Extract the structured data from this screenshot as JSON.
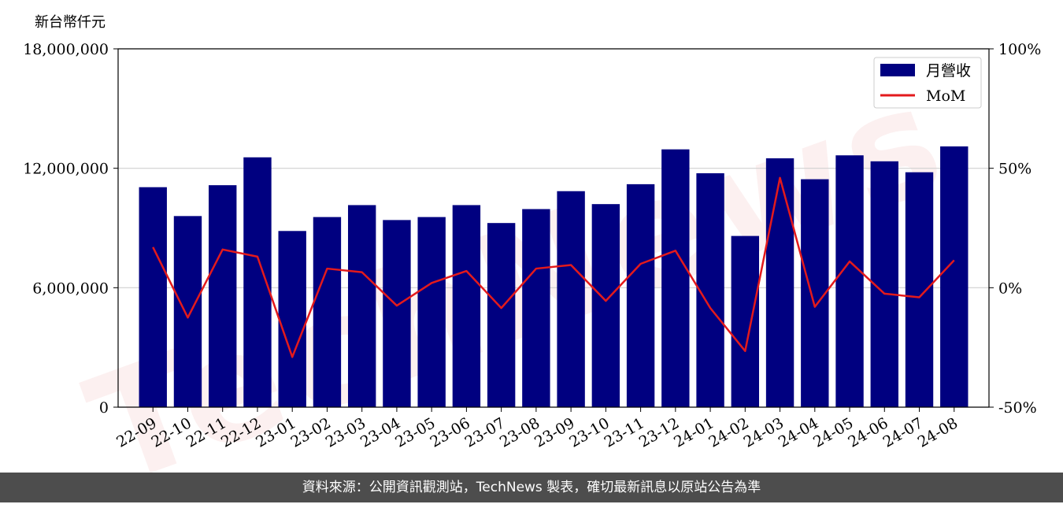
{
  "chart_data": {
    "type": "bar+line",
    "y_left_unit": "新台幣仟元",
    "ylim_left": [
      0,
      18000000
    ],
    "yticks_left": [
      "0",
      "6,000,000",
      "12,000,000",
      "18,000,000"
    ],
    "ylim_right": [
      -50,
      100
    ],
    "yticks_right": [
      "-50%",
      "0%",
      "50%",
      "100%"
    ],
    "categories": [
      "22-09",
      "22-10",
      "22-11",
      "22-12",
      "23-01",
      "23-02",
      "23-03",
      "23-04",
      "23-05",
      "23-06",
      "23-07",
      "23-08",
      "23-09",
      "23-10",
      "23-11",
      "23-12",
      "24-01",
      "24-02",
      "24-03",
      "24-04",
      "24-05",
      "24-06",
      "24-07",
      "24-08"
    ],
    "series": [
      {
        "name": "月營收",
        "kind": "bar",
        "axis": "left",
        "color": "#000080",
        "values": [
          11050000,
          9600000,
          11150000,
          12550000,
          8850000,
          9550000,
          10150000,
          9400000,
          9550000,
          10150000,
          9250000,
          9950000,
          10850000,
          10200000,
          11200000,
          12950000,
          11750000,
          8600000,
          12500000,
          11450000,
          12650000,
          12350000,
          11800000,
          13100000
        ]
      },
      {
        "name": "MoM",
        "kind": "line",
        "axis": "right",
        "color": "#e31a1c",
        "values": [
          17,
          -12.5,
          16,
          13,
          -29,
          8,
          6.5,
          -7.5,
          2,
          7,
          -8.5,
          8,
          9.5,
          -5.5,
          10,
          15.5,
          -8.5,
          -26.5,
          46,
          -8,
          11,
          -2.5,
          -4,
          11.5
        ]
      }
    ],
    "legend_position": "top-right",
    "grid": "horizontal"
  },
  "footer": {
    "text": "資料來源：公開資訊觀測站，TechNews 製表，確切最新訊息以原站公告為準"
  }
}
